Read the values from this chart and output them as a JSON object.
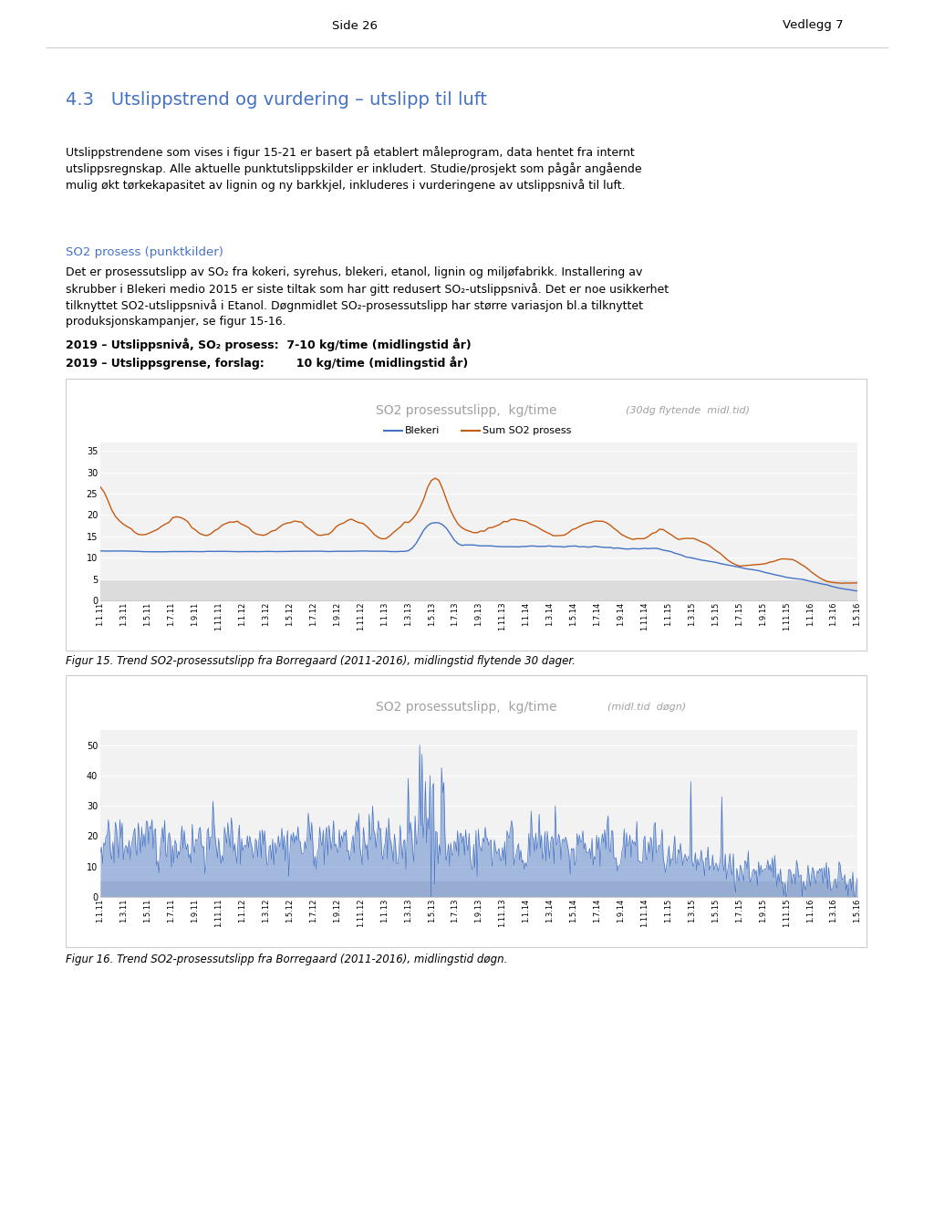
{
  "page_header_left": "Side 26",
  "page_header_right": "Vedlegg 7",
  "section_title": "4.3   Utslippstrend og vurdering – utslipp til luft",
  "section_title_color": "#4472C4",
  "body_text1_lines": [
    "Utslippstrendene som vises i figur 15-21 er basert på etablert måleprogram, data hentet fra internt",
    "utslippsregnskap. Alle aktuelle punktutslippskilder er inkludert. Studie/prosjekt som pågår angående",
    "mulig økt tørkekapasitet av lignin og ny barkkjel, inkluderes i vurderingene av utslippsnivå til luft."
  ],
  "subsection_title": "SO2 prosess (punktkilder)",
  "subsection_title_color": "#4472C4",
  "body_text2_lines": [
    "Det er prosessutslipp av SO₂ fra kokeri, syrehus, blekeri, etanol, lignin og miljøfabrikk. Installering av",
    "skrubber i Blekeri medio 2015 er siste tiltak som har gitt redusert SO₂-utslippsnivå. Det er noe usikkerhet",
    "tilknyttet SO2-utslippsnivå i Etanol. Døgnmidlet SO₂-prosessutslipp har større variasjon bl.a tilknyttet",
    "produksjonskampanjer, se figur 15-16."
  ],
  "bullet1": "2019 – Utslippsnivå, SO₂ prosess:  7-10 kg/time (midlingstid år)",
  "bullet2": "2019 – Utslippsgrense, forslag:        10 kg/time (midlingstid år)",
  "chart1_title_main": "SO2 prosessutslipp,  kg/time",
  "chart1_title_sub": "(30dg flytende  midl.tid)",
  "chart1_legend1": "Blekeri",
  "chart1_legend2": "Sum SO2 prosess",
  "chart1_color_blekeri": "#4472C4",
  "chart1_color_sum": "#C55A11",
  "chart1_yticks": [
    0,
    5,
    10,
    15,
    20,
    25,
    30,
    35
  ],
  "chart1_ylim": [
    0,
    37
  ],
  "chart2_title_main": "SO2 prosessutslipp,  kg/time",
  "chart2_title_sub": "(midl.tid  døgn)",
  "chart2_color": "#4472C4",
  "chart2_yticks": [
    0,
    10,
    20,
    30,
    40,
    50
  ],
  "chart2_ylim": [
    0,
    55
  ],
  "chart_plot_bg": "#F2F2F2",
  "chart_border_color": "#CCCCCC",
  "xtick_labels": [
    "1.1.11",
    "1.3.11",
    "1.5.11",
    "1.7.11",
    "1.9.11",
    "1.11.11",
    "1.1.12",
    "1.3.12",
    "1.5.12",
    "1.7.12",
    "1.9.12",
    "1.11.12",
    "1.1.13",
    "1.3.13",
    "1.5.13",
    "1.7.13",
    "1.9.13",
    "1.11.13",
    "1.1.14",
    "1.3.14",
    "1.5.14",
    "1.7.14",
    "1.9.14",
    "1.11.14",
    "1.1.15",
    "1.3.15",
    "1.5.15",
    "1.7.15",
    "1.9.15",
    "1.11.15",
    "1.1.16",
    "1.3.16",
    "1.5.16"
  ],
  "fig15_caption": "Figur 15. Trend SO2-prosessutslipp fra Borregaard (2011-2016), midlingstid flytende 30 dager.",
  "fig16_caption": "Figur 16. Trend SO2-prosessutslipp fra Borregaard (2011-2016), midlingstid døgn.",
  "bg_color": "#FFFFFF",
  "text_color": "#000000",
  "header_line_color": "#CCCCCC",
  "gray_band_color": "#DCDCDC"
}
